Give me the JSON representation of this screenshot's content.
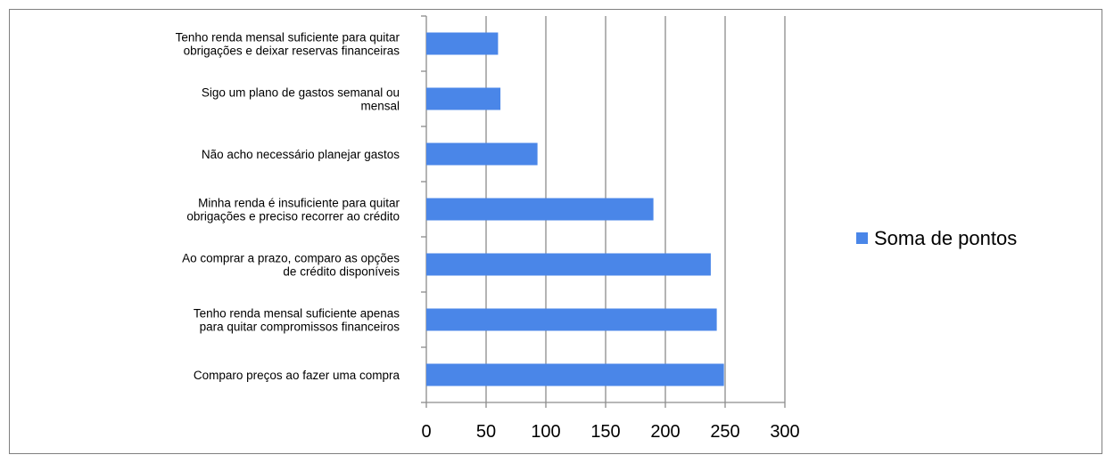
{
  "chart_data": {
    "type": "bar",
    "orientation": "horizontal",
    "categories": [
      [
        "Comparo preços ao fazer uma compra"
      ],
      [
        "Tenho renda  mensal suficiente apenas",
        "para quitar compromissos financeiros"
      ],
      [
        "Ao comprar a prazo, comparo as opções",
        "de crédito disponíveis"
      ],
      [
        "Minha renda é insuficiente para quitar",
        "obrigações e preciso recorrer ao crédito"
      ],
      [
        "Não acho necessário planejar gastos"
      ],
      [
        "Sigo um plano de gastos semanal ou",
        "mensal"
      ],
      [
        "Tenho renda  mensal suficiente para  quitar",
        "obrigações e deixar reservas financeiras"
      ]
    ],
    "series": [
      {
        "name": "Soma de pontos",
        "values": [
          249,
          243,
          238,
          190,
          93,
          62,
          60
        ],
        "color": "#4a86e8"
      }
    ],
    "xlim": [
      0,
      300
    ],
    "xticks": [
      "0",
      "50",
      "100",
      "150",
      "200",
      "250",
      "300"
    ],
    "grid": "vertical",
    "legend": "right",
    "title": "",
    "xlabel": "",
    "ylabel": ""
  }
}
